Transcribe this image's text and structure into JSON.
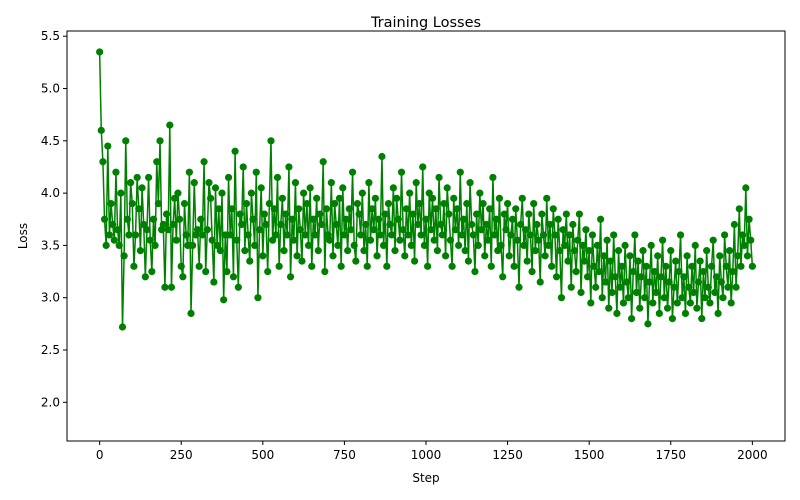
{
  "chart_data": {
    "type": "line",
    "title": "Training Losses",
    "xlabel": "Step",
    "ylabel": "Loss",
    "xlim": [
      -100,
      2100
    ],
    "ylim": [
      1.63,
      5.55
    ],
    "xticks": [
      0,
      250,
      500,
      750,
      1000,
      1250,
      1500,
      1750,
      2000
    ],
    "yticks": [
      2.0,
      2.5,
      3.0,
      3.5,
      4.0,
      4.5,
      5.0,
      5.5
    ],
    "ytick_labels": [
      "2.0",
      "2.5",
      "3.0",
      "3.5",
      "4.0",
      "4.5",
      "5.0",
      "5.5"
    ],
    "grid": false,
    "colors": {
      "series": "#008000",
      "axes": "#000000"
    },
    "series": [
      {
        "marker": "circle",
        "step_interval": 5,
        "values": [
          5.35,
          4.6,
          4.3,
          3.75,
          3.5,
          4.45,
          3.6,
          3.9,
          3.7,
          3.55,
          4.2,
          3.65,
          3.5,
          4.0,
          2.72,
          3.4,
          4.5,
          3.75,
          3.6,
          4.1,
          3.9,
          3.3,
          3.6,
          4.15,
          3.85,
          3.45,
          4.05,
          3.7,
          3.2,
          3.65,
          4.15,
          3.55,
          3.25,
          3.75,
          3.5,
          4.3,
          3.9,
          4.5,
          3.65,
          3.7,
          3.1,
          3.8,
          3.65,
          4.65,
          3.1,
          3.7,
          3.95,
          3.55,
          4.0,
          3.75,
          3.3,
          3.2,
          3.9,
          3.6,
          3.5,
          4.2,
          2.85,
          3.5,
          4.1,
          3.6,
          3.65,
          3.3,
          3.75,
          3.6,
          4.3,
          3.25,
          3.65,
          4.1,
          3.95,
          3.55,
          3.15,
          4.05,
          3.5,
          3.85,
          3.45,
          4.0,
          2.98,
          3.6,
          3.25,
          4.15,
          3.6,
          3.85,
          3.2,
          4.4,
          3.55,
          3.1,
          3.8,
          3.7,
          4.25,
          3.45,
          3.9,
          3.6,
          3.35,
          4.0,
          3.75,
          3.5,
          4.2,
          3.0,
          3.65,
          4.05,
          3.4,
          3.8,
          3.7,
          3.25,
          3.9,
          4.5,
          3.55,
          3.85,
          3.6,
          4.15,
          3.3,
          3.7,
          3.95,
          3.45,
          3.8,
          3.6,
          4.25,
          3.2,
          3.75,
          3.55,
          4.1,
          3.4,
          3.85,
          3.65,
          3.35,
          4.0,
          3.6,
          3.9,
          3.5,
          4.05,
          3.3,
          3.75,
          3.6,
          3.95,
          3.45,
          3.8,
          3.7,
          4.3,
          3.25,
          3.85,
          3.6,
          3.55,
          4.1,
          3.4,
          3.9,
          3.7,
          3.5,
          3.95,
          3.3,
          4.05,
          3.6,
          3.75,
          3.45,
          3.85,
          3.65,
          4.2,
          3.5,
          3.35,
          3.9,
          3.8,
          3.6,
          4.0,
          3.45,
          3.7,
          3.3,
          4.1,
          3.55,
          3.85,
          3.65,
          3.95,
          3.4,
          3.75,
          3.6,
          4.35,
          3.5,
          3.8,
          3.3,
          3.9,
          3.7,
          3.6,
          4.05,
          3.45,
          3.95,
          3.75,
          3.55,
          4.2,
          3.65,
          3.4,
          3.85,
          3.6,
          4.0,
          3.5,
          3.8,
          3.35,
          4.1,
          3.7,
          3.9,
          3.6,
          4.25,
          3.5,
          3.75,
          3.3,
          4.0,
          3.65,
          3.95,
          3.55,
          3.85,
          3.45,
          4.15,
          3.7,
          3.6,
          3.9,
          3.4,
          4.05,
          3.8,
          3.55,
          3.3,
          3.95,
          3.65,
          3.85,
          3.5,
          4.2,
          3.6,
          3.75,
          3.45,
          3.9,
          3.35,
          4.1,
          3.7,
          3.6,
          3.25,
          3.8,
          3.5,
          4.0,
          3.65,
          3.9,
          3.4,
          3.7,
          3.55,
          3.85,
          3.3,
          4.15,
          3.6,
          3.75,
          3.45,
          3.95,
          3.5,
          3.2,
          3.8,
          3.65,
          3.9,
          3.4,
          3.6,
          3.75,
          3.3,
          3.85,
          3.55,
          3.1,
          3.7,
          3.95,
          3.5,
          3.65,
          3.35,
          3.8,
          3.6,
          3.25,
          3.9,
          3.45,
          3.7,
          3.55,
          3.15,
          3.8,
          3.6,
          3.4,
          3.95,
          3.5,
          3.7,
          3.3,
          3.85,
          3.6,
          3.2,
          3.75,
          3.45,
          3.0,
          3.65,
          3.5,
          3.8,
          3.35,
          3.6,
          3.1,
          3.7,
          3.45,
          3.25,
          3.55,
          3.8,
          3.05,
          3.5,
          3.35,
          3.65,
          3.2,
          3.45,
          2.95,
          3.6,
          3.3,
          3.1,
          3.5,
          3.25,
          3.75,
          3.0,
          3.4,
          3.15,
          3.55,
          2.9,
          3.35,
          3.05,
          3.6,
          3.2,
          2.85,
          3.45,
          3.1,
          3.3,
          2.95,
          3.5,
          3.15,
          3.0,
          3.4,
          2.8,
          3.25,
          3.6,
          3.05,
          3.35,
          2.9,
          3.2,
          3.45,
          3.0,
          3.3,
          2.75,
          3.15,
          3.5,
          2.95,
          3.25,
          3.05,
          3.4,
          2.85,
          3.2,
          3.55,
          3.0,
          3.3,
          2.9,
          3.15,
          3.45,
          2.8,
          3.1,
          3.35,
          2.95,
          3.25,
          3.6,
          3.0,
          3.2,
          2.85,
          3.4,
          3.1,
          2.95,
          3.3,
          3.05,
          3.5,
          2.9,
          3.15,
          3.35,
          2.8,
          3.25,
          3.0,
          3.45,
          3.1,
          2.95,
          3.3,
          3.55,
          3.05,
          3.2,
          2.85,
          3.4,
          3.15,
          3.0,
          3.6,
          3.3,
          3.1,
          3.45,
          2.95,
          3.25,
          3.7,
          3.1,
          3.4,
          3.85,
          3.3,
          3.6,
          3.5,
          4.05,
          3.4,
          3.75,
          3.55,
          3.3
        ]
      }
    ]
  }
}
